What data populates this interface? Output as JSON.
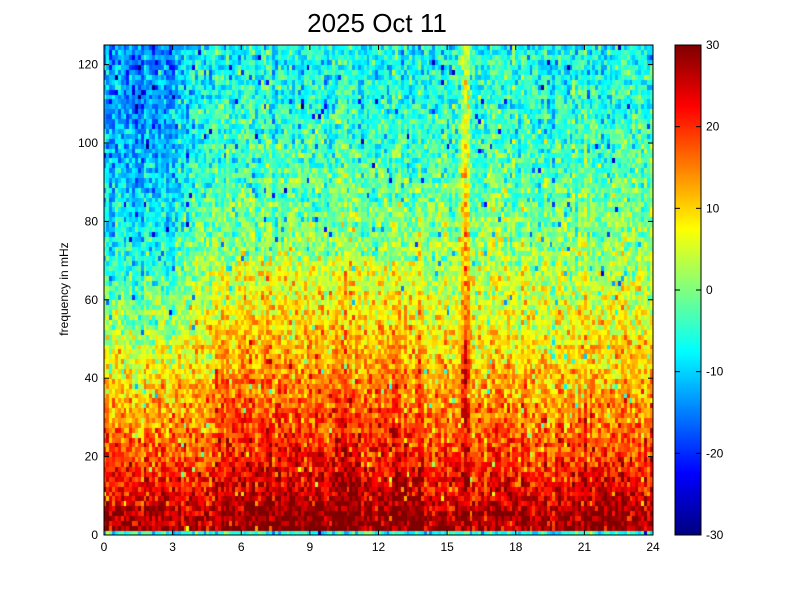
{
  "chart_data": {
    "type": "heatmap",
    "title": "2025 Oct 11",
    "xlabel": "",
    "ylabel": "frequency in mHz",
    "xlim": [
      0,
      24
    ],
    "ylim": [
      0,
      125
    ],
    "x_ticks": [
      "0",
      "3",
      "6",
      "9",
      "12",
      "15",
      "18",
      "21",
      "24"
    ],
    "y_ticks": [
      "0",
      "20",
      "40",
      "60",
      "80",
      "100",
      "120"
    ],
    "colorbar": {
      "range": [
        -30,
        30
      ],
      "ticks": [
        "-30",
        "-20",
        "-10",
        "0",
        "10",
        "20",
        "30"
      ],
      "colormap": "jet"
    },
    "grid": false,
    "field": {
      "bin_hours": 0.125,
      "bin_mhz": 1.25,
      "level_profile": [
        {
          "f_mhz": 2,
          "value": 28
        },
        {
          "f_mhz": 10,
          "value": 24
        },
        {
          "f_mhz": 20,
          "value": 19
        },
        {
          "f_mhz": 40,
          "value": 12
        },
        {
          "f_mhz": 60,
          "value": 5
        },
        {
          "f_mhz": 80,
          "value": 0
        },
        {
          "f_mhz": 100,
          "value": -4
        },
        {
          "f_mhz": 125,
          "value": -7
        }
      ],
      "lowest_band": {
        "f_max_mhz": 1.5,
        "value": -6
      },
      "features": [
        {
          "name": "early-hours quiet",
          "t_start_h": 0,
          "t_end_h": 3,
          "value_offset": -8
        },
        {
          "name": "daytime enhancement",
          "t_start_h": 5,
          "t_end_h": 14,
          "value_offset": 3
        },
        {
          "name": "vertical streak",
          "t_center_h": 15.8,
          "value_offset": 12
        },
        {
          "name": "late peak",
          "t_center_h": 21.8,
          "f_max_mhz": 25,
          "value_offset": 6
        }
      ]
    }
  }
}
